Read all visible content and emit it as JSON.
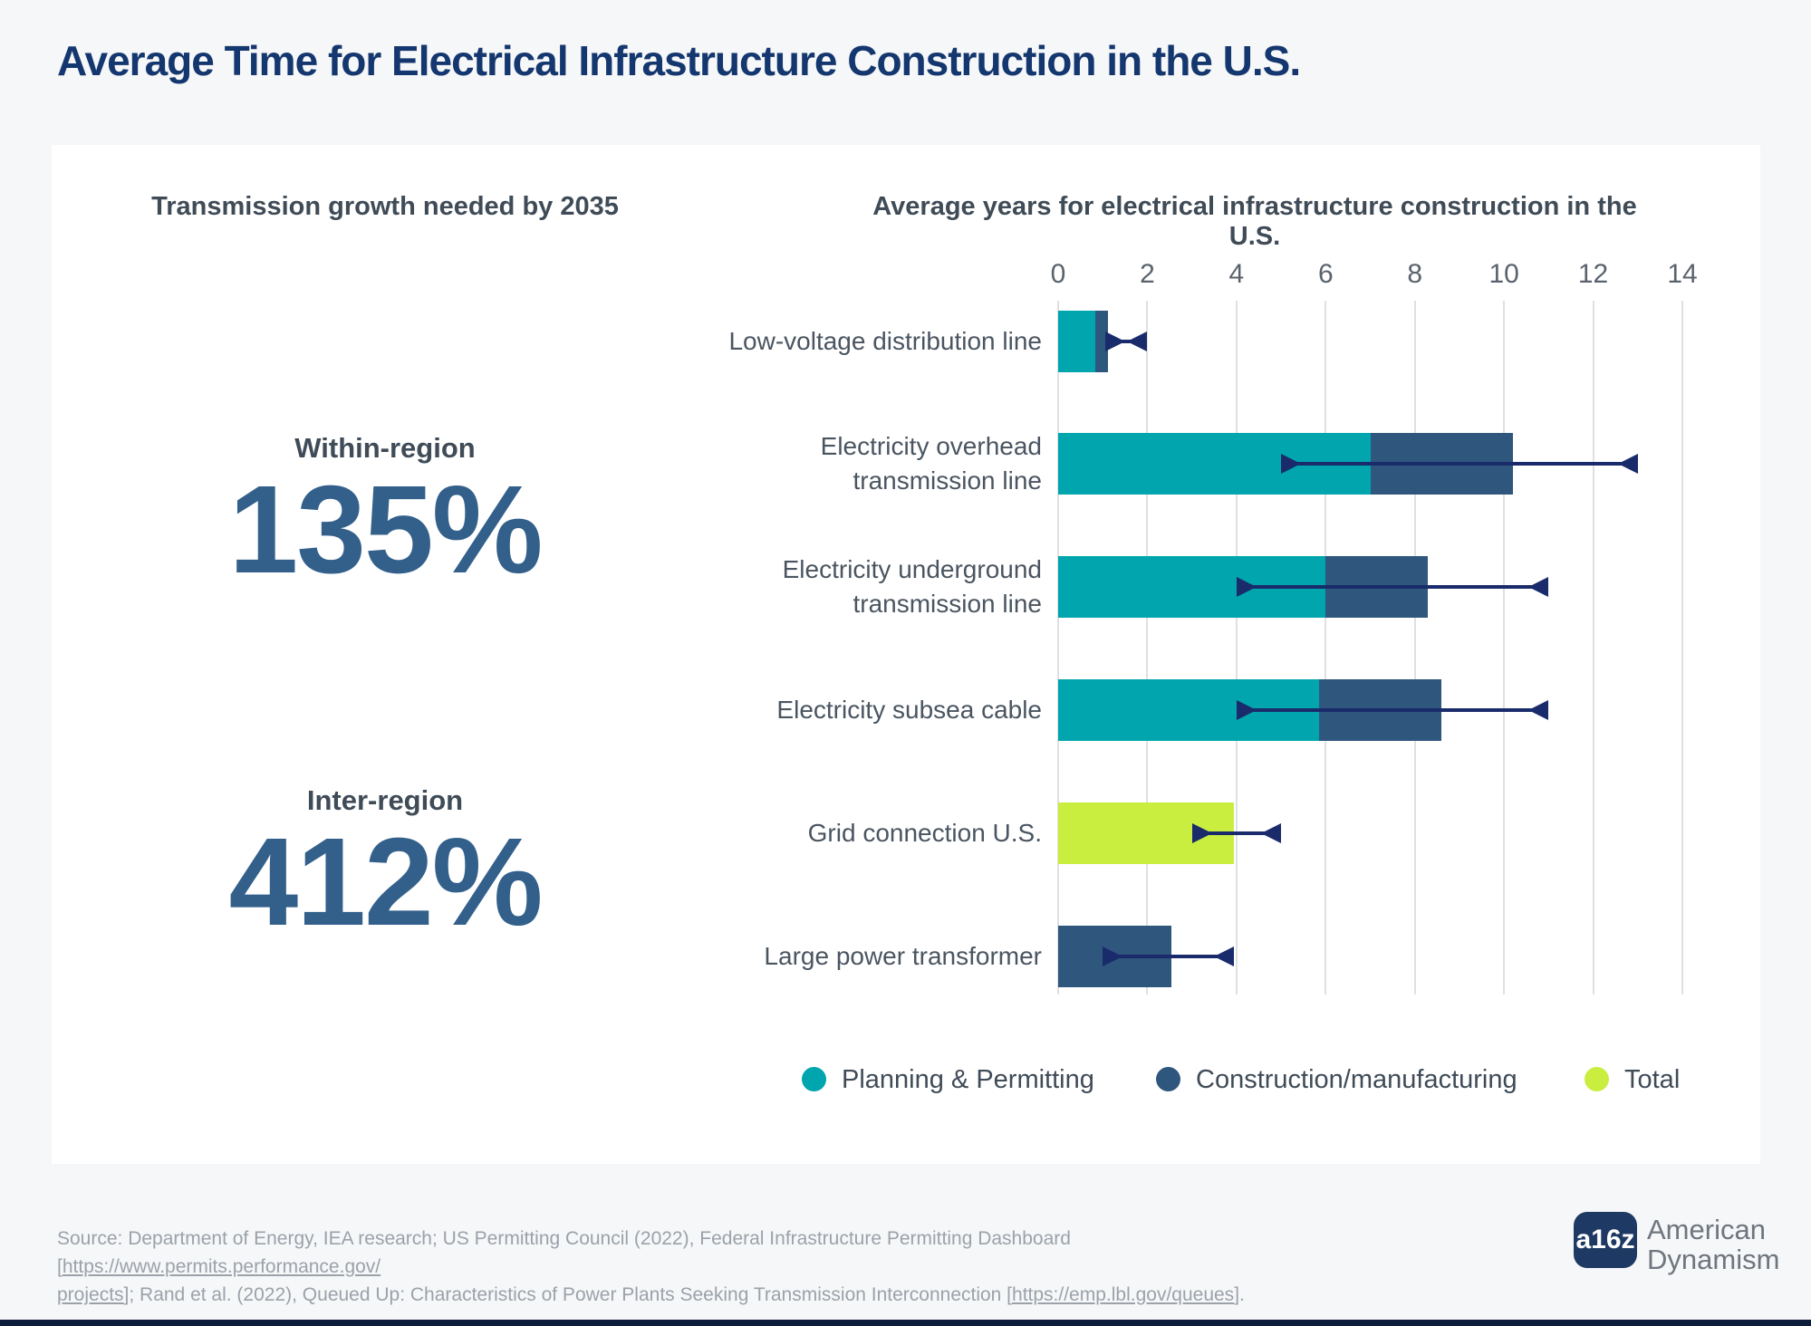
{
  "page_title": "Average Time for Electrical Infrastructure Construction in the U.S.",
  "left_panel": {
    "heading": "Transmission growth needed by 2035",
    "stats": [
      {
        "label": "Within-region",
        "value": "135%"
      },
      {
        "label": "Inter-region",
        "value": "412%"
      }
    ],
    "stat_color": "#33608B"
  },
  "chart_data": {
    "type": "bar",
    "orientation": "horizontal",
    "title": "Average years for electrical infrastructure construction in the U.S.",
    "xlabel": "",
    "ylabel": "",
    "xlim": [
      0,
      14
    ],
    "x_ticks": [
      0,
      2,
      4,
      6,
      8,
      10,
      12,
      14
    ],
    "grid": "vertical",
    "categories": [
      "Low-voltage distribution line",
      "Electricity overhead\ntransmission line",
      "Electricity underground\ntransmission line",
      "Electricity subsea cable",
      "Grid connection U.S.",
      "Large power transformer"
    ],
    "series": [
      {
        "name": "Planning & Permitting",
        "color": "#00A5AE",
        "values": [
          0.83,
          7.0,
          6.0,
          5.85,
          0,
          0
        ]
      },
      {
        "name": "Construction/manufacturing",
        "color": "#2F567D",
        "values": [
          0.28,
          3.2,
          2.3,
          2.75,
          0,
          2.55
        ]
      },
      {
        "name": "Total",
        "color": "#C9EE3F",
        "values": [
          0,
          0,
          0,
          0,
          3.95,
          0
        ]
      }
    ],
    "totals": [
      1.11,
      10.2,
      8.3,
      8.6,
      3.95,
      2.55
    ],
    "error_ranges": [
      [
        1.05,
        2.0
      ],
      [
        5.0,
        13.0
      ],
      [
        4.0,
        11.0
      ],
      [
        4.0,
        11.0
      ],
      [
        3.0,
        5.0
      ],
      [
        1.0,
        3.95
      ]
    ],
    "error_color": "#1A2B6B",
    "legend_position": "bottom",
    "legend": [
      "Planning & Permitting",
      "Construction/manufacturing",
      "Total"
    ]
  },
  "footer": {
    "source_line1_parts": [
      {
        "text": "Source: Department of Energy, IEA research; US Permitting Council (2022), Federal Infrastructure Permitting Dashboard [",
        "link": false
      },
      {
        "text": "https://www.permits.performance.gov/",
        "link": true
      }
    ],
    "source_line2_parts": [
      {
        "text": "projects",
        "link": true
      },
      {
        "text": "]; Rand et al. (2022), Queued Up: Characteristics of Power Plants Seeking Transmission Interconnection [",
        "link": false
      },
      {
        "text": "https://emp.lbl.gov/queues",
        "link": true
      },
      {
        "text": "].",
        "link": false
      }
    ]
  },
  "logo": {
    "badge": "a16z",
    "badge_color": "#1E3A64",
    "name": "American\nDynamism"
  }
}
